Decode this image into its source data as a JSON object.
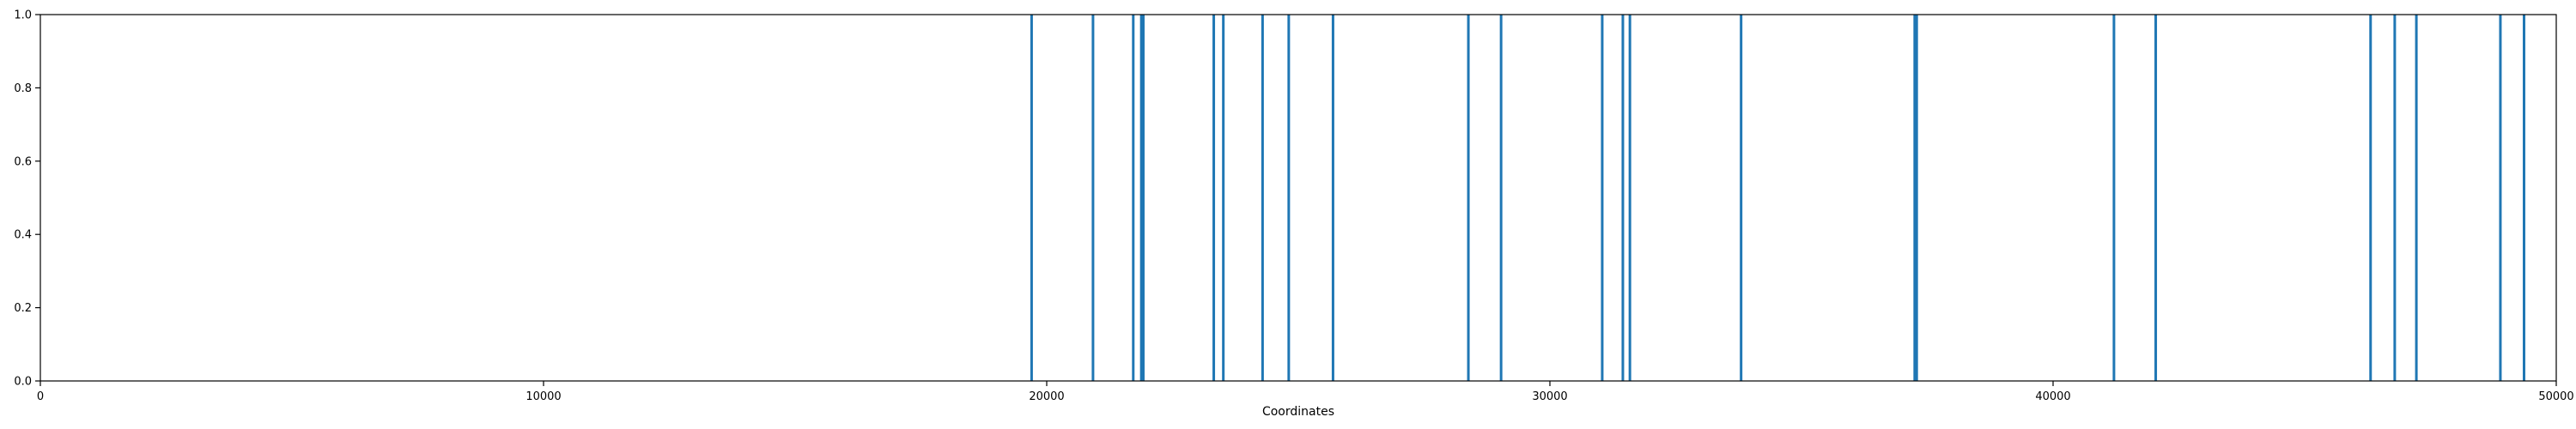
{
  "chart_data": {
    "type": "bar",
    "subtype": "event-lines",
    "title": "",
    "xlabel": "Coordinates",
    "ylabel": "",
    "xlim": [
      0,
      50000
    ],
    "ylim": [
      0,
      1.0
    ],
    "x_ticks": [
      0,
      10000,
      20000,
      30000,
      40000,
      50000
    ],
    "x_tick_labels": [
      "0",
      "10000",
      "20000",
      "30000",
      "40000",
      "50000"
    ],
    "y_ticks": [
      0.0,
      0.2,
      0.4,
      0.6,
      0.8,
      1.0
    ],
    "y_tick_labels": [
      "0.0",
      "0.2",
      "0.4",
      "0.6",
      "0.8",
      "1.0"
    ],
    "grid": false,
    "legend": false,
    "color": "#1f77b4",
    "series": [
      {
        "x": [
          19700,
          20920,
          21720,
          21880,
          21920,
          23320,
          23510,
          24290,
          24810,
          25690,
          28380,
          29030,
          31040,
          31450,
          31590,
          33800,
          37250,
          37290,
          41210,
          42040,
          46310,
          46790,
          47220,
          48890,
          49360
        ],
        "values": [
          1,
          1,
          1,
          1,
          1,
          1,
          1,
          1,
          1,
          1,
          1,
          1,
          1,
          1,
          1,
          1,
          1,
          1,
          1,
          1,
          1,
          1,
          1,
          1,
          1
        ]
      }
    ]
  }
}
